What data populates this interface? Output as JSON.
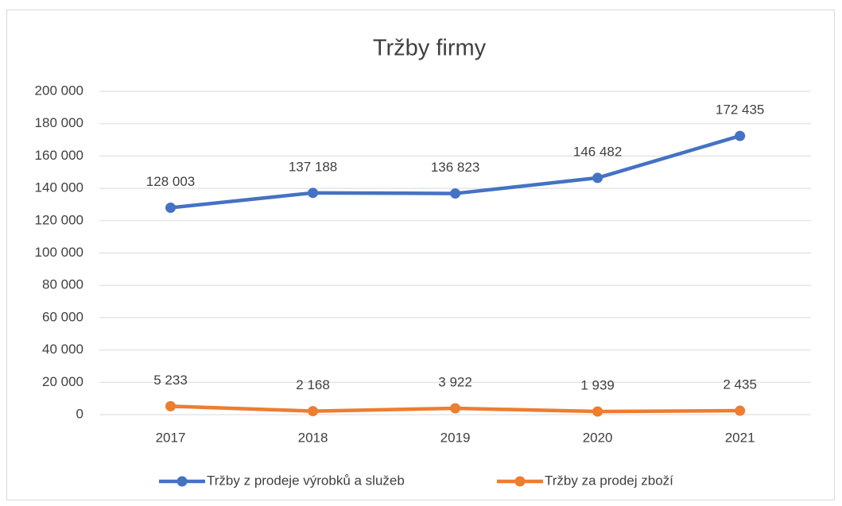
{
  "chart_data": {
    "type": "line",
    "title": "Tržby firmy",
    "categories": [
      "2017",
      "2018",
      "2019",
      "2020",
      "2021"
    ],
    "series": [
      {
        "name": "Tržby z prodeje výrobků a služeb",
        "color": "#4472c4",
        "values": [
          128003,
          137188,
          136823,
          146482,
          172435
        ],
        "value_labels": [
          "128 003",
          "137 188",
          "136 823",
          "146 482",
          "172 435"
        ]
      },
      {
        "name": "Tržby za prodej zboží",
        "color": "#ed7d31",
        "values": [
          5233,
          2168,
          3922,
          1939,
          2435
        ],
        "value_labels": [
          "5 233",
          "2 168",
          "3 922",
          "1 939",
          "2 435"
        ]
      }
    ],
    "ylim": [
      0,
      200000
    ],
    "yticks": [
      0,
      {
        "value": 20000,
        "label": "20 000"
      },
      {
        "value": 40000,
        "label": "40 000"
      },
      {
        "value": 60000,
        "label": "60 000"
      },
      {
        "value": 80000,
        "label": "80 000"
      },
      {
        "value": 100000,
        "label": "100 000"
      },
      {
        "value": 120000,
        "label": "120 000"
      },
      {
        "value": 140000,
        "label": "140 000"
      },
      {
        "value": 160000,
        "label": "160 000"
      },
      {
        "value": 180000,
        "label": "180 000"
      },
      {
        "value": 200000,
        "label": "200 000"
      }
    ],
    "grid": true,
    "legend": "bottom"
  }
}
